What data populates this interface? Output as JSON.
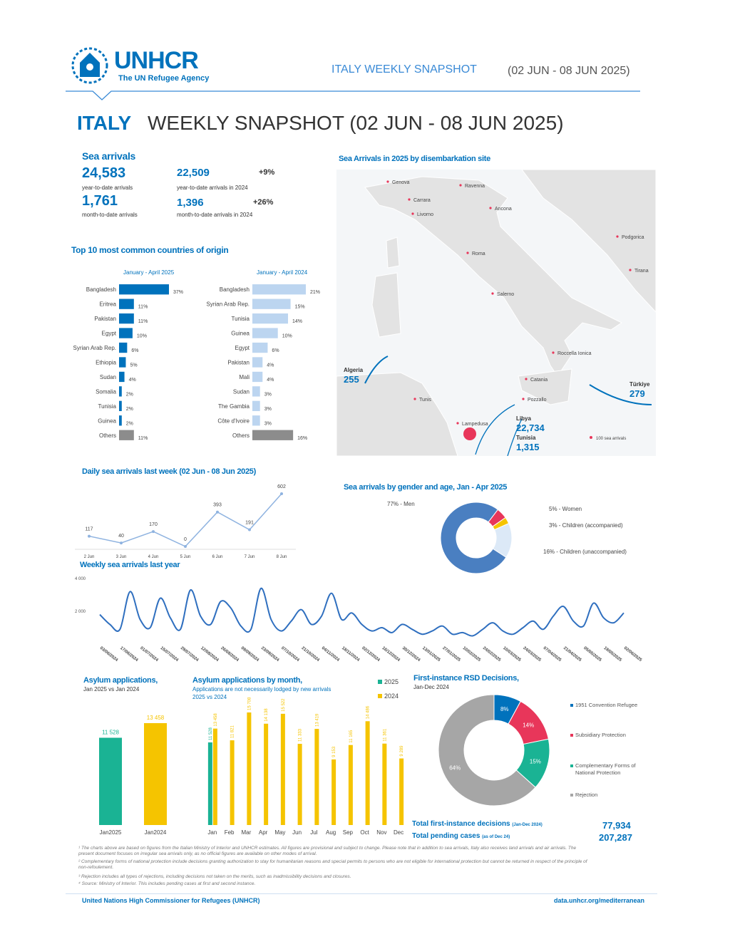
{
  "header": {
    "logo": "UNHCR",
    "tagline": "The UN Refugee Agency",
    "snapshot": "ITALY WEEKLY SNAPSHOT",
    "dates": "(02 JUN - 08 JUN 2025)"
  },
  "title": {
    "country": "ITALY",
    "rest": "WEEKLY SNAPSHOT (02 JUN - 08 JUN 2025)"
  },
  "sea_arrivals": {
    "heading": "Sea arrivals",
    "items": [
      {
        "value": "24,583",
        "label": "year-to-date arrivals"
      },
      {
        "value": "22,509",
        "label": "year-to-date arrivals in 2024",
        "change": "+9%"
      },
      {
        "value": "1,761",
        "label": "month-to-date arrivals"
      },
      {
        "value": "1,396",
        "label": "month-to-date arrivals in 2024",
        "change": "+26%"
      }
    ]
  },
  "origin_heading": "Top 10 most common countries of origin",
  "map": {
    "title": "Sea Arrivals in 2025 by disembarkation site",
    "sites": [
      "Genova",
      "Carrara",
      "Livorno",
      "Ravenna",
      "Ancona",
      "Roma",
      "Salerno",
      "Roccella Ionica",
      "Catania",
      "Pozzallo",
      "Lampedusa",
      "Tunis",
      "Podgorica",
      "Tirana"
    ],
    "flows": [
      {
        "origin": "Algeria",
        "value": "255"
      },
      {
        "origin": "Libya",
        "value": "22,734"
      },
      {
        "origin": "Tunisia",
        "value": "1,315"
      },
      {
        "origin": "Türkiye",
        "value": "279"
      }
    ],
    "legend": "100 sea arrivals"
  },
  "chart_data": [
    {
      "type": "hbar",
      "subtitle": "January - April 2025",
      "categories": [
        "Bangladesh",
        "Eritrea",
        "Pakistan",
        "Egypt",
        "Syrian Arab Rep.",
        "Ethiopia",
        "Sudan",
        "Somalia",
        "Tunisia",
        "Guinea",
        "Others"
      ],
      "values": [
        37,
        11,
        11,
        10,
        6,
        5,
        4,
        2,
        2,
        2,
        11
      ],
      "value_labels": [
        "37%",
        "11%",
        "11%",
        "10%",
        "6%",
        "5%",
        "4%",
        "2%",
        "2%",
        "2%",
        "11%"
      ],
      "colors": [
        "#0072bc",
        "#0072bc",
        "#0072bc",
        "#0072bc",
        "#0072bc",
        "#0072bc",
        "#0072bc",
        "#0072bc",
        "#0072bc",
        "#0072bc",
        "#8c8c8c"
      ]
    },
    {
      "type": "hbar",
      "subtitle": "January - April 2024",
      "categories": [
        "Bangladesh",
        "Syrian Arab Rep.",
        "Tunisia",
        "Guinea",
        "Egypt",
        "Pakistan",
        "Mali",
        "Sudan",
        "The Gambia",
        "Côte d'Ivoire",
        "Others"
      ],
      "values": [
        21,
        15,
        14,
        10,
        6,
        4,
        4,
        3,
        3,
        3,
        16
      ],
      "value_labels": [
        "21%",
        "15%",
        "14%",
        "10%",
        "6%",
        "4%",
        "4%",
        "3%",
        "3%",
        "3%",
        "16%"
      ],
      "colors": [
        "#bcd5f0",
        "#bcd5f0",
        "#bcd5f0",
        "#bcd5f0",
        "#bcd5f0",
        "#bcd5f0",
        "#bcd5f0",
        "#bcd5f0",
        "#bcd5f0",
        "#bcd5f0",
        "#8c8c8c"
      ]
    },
    {
      "type": "line",
      "title": "Daily sea arrivals last week (02 Jun - 08 Jun 2025)",
      "categories": [
        "2 Jun",
        "3 Jun",
        "4 Jun",
        "5 Jun",
        "6 Jun",
        "7 Jun",
        "8 Jun"
      ],
      "values": [
        117,
        40,
        170,
        0,
        393,
        191,
        602
      ],
      "color": "#8fb3e0"
    },
    {
      "type": "donut",
      "title": "Sea arrivals by gender and age, Jan - Apr 2025",
      "categories": [
        "77% - Men",
        "5% - Women",
        "3% - Children (accompanied)",
        "16% - Children (unaccompanied)"
      ],
      "values": [
        77,
        5,
        3,
        16
      ],
      "colors": [
        "#4a7fc1",
        "#e8365a",
        "#f5c400",
        "#dce9f7"
      ]
    },
    {
      "type": "line",
      "title": "Weekly sea arrivals last year",
      "categories": [
        "03/06/2024",
        null,
        "17/06/2024",
        null,
        "01/07/2024",
        null,
        "15/07/2024",
        null,
        "29/07/2024",
        null,
        "12/08/2024",
        null,
        "26/08/2024",
        null,
        "09/09/2024",
        null,
        "23/09/2024",
        null,
        "07/10/2024",
        null,
        "21/10/2024",
        null,
        "04/11/2024",
        null,
        "18/11/2024",
        null,
        "02/12/2024",
        null,
        "16/12/2024",
        null,
        "30/12/2024",
        null,
        "13/01/2025",
        null,
        "27/01/2025",
        null,
        "10/02/2025",
        null,
        "24/02/2025",
        null,
        "10/03/2025",
        null,
        "24/03/2025",
        null,
        "07/04/2025",
        null,
        "21/04/2025",
        null,
        "05/05/2025",
        null,
        "19/05/2025",
        null,
        "02/06/2025"
      ],
      "values": [
        1800,
        1200,
        900,
        3200,
        1500,
        1000,
        2800,
        1600,
        900,
        3300,
        1700,
        1200,
        2600,
        2200,
        1100,
        900,
        3400,
        1500,
        800,
        1400,
        2100,
        1200,
        1700,
        3100,
        1500,
        1900,
        1200,
        800,
        1000,
        700,
        1200,
        900,
        600,
        800,
        1100,
        600,
        700,
        500,
        900,
        1300,
        800,
        600,
        1000,
        1400,
        900,
        1700,
        2300,
        1400,
        1100,
        2500,
        1600,
        1300,
        1900
      ],
      "ylim": [
        0,
        4000
      ],
      "yticks": [
        {
          "value": 2000,
          "label": "2 000"
        },
        {
          "value": 4000,
          "label": "4 000"
        }
      ],
      "color": "#2f6fbf"
    },
    {
      "type": "bar",
      "title": "Asylum applications,",
      "subtitle": "Jan 2025 vs Jan 2024",
      "categories": [
        "Jan2025",
        "Jan2024"
      ],
      "values": [
        11528,
        13458
      ],
      "value_labels": [
        "11 528",
        "13 458"
      ],
      "colors": [
        "#1ab394",
        "#f5c400"
      ]
    },
    {
      "type": "grouped_bar",
      "title": "Asylum applications by month,",
      "subtitle": "Applications are not necessarily lodged by new arrivals",
      "note": "2025 vs 2024",
      "categories": [
        "Jan",
        "Feb",
        "Mar",
        "Apr",
        "May",
        "Jun",
        "Jul",
        "Aug",
        "Sep",
        "Oct",
        "Nov",
        "Dec"
      ],
      "series": [
        {
          "name": "2025",
          "color": "#1ab394",
          "values": [
            11528,
            null,
            null,
            null,
            null,
            null,
            null,
            null,
            null,
            null,
            null,
            null
          ],
          "value_labels": [
            "11 528",
            null,
            null,
            null,
            null,
            null,
            null,
            null,
            null,
            null,
            null,
            null
          ]
        },
        {
          "name": "2024",
          "color": "#f5c400",
          "values": [
            13458,
            11821,
            15708,
            14138,
            15522,
            11333,
            13419,
            9153,
            11165,
            14486,
            11361,
            9289
          ],
          "value_labels": [
            "13 458",
            "11 821",
            "15 708",
            "14 138",
            "15 522",
            "11 333",
            "13 419",
            "9 153",
            "11 165",
            "14 486",
            "11 361",
            "9 289"
          ]
        }
      ]
    },
    {
      "type": "donut",
      "title": "First-instance RSD Decisions,",
      "subtitle": "Jan-Dec 2024",
      "categories": [
        "1951 Convention Refugee",
        "Subsidiary Protection",
        "Complementary Forms of National Protection",
        "Rejection"
      ],
      "values": [
        8,
        14,
        15,
        64
      ],
      "value_labels": [
        "8%",
        "14%",
        "15%",
        "64%"
      ],
      "colors": [
        "#0072bc",
        "#e8365a",
        "#1ab394",
        "#a6a6a6"
      ]
    }
  ],
  "totals": [
    {
      "label": "Total first-instance decisions",
      "qualifier": "(Jan-Dec 2024)",
      "value": "77,934"
    },
    {
      "label": "Total pending cases",
      "qualifier": "(as of Dec 24)",
      "value": "207,287"
    }
  ],
  "footnotes": [
    "¹ The charts above are based on figures from the Italian Ministry of Interior and UNHCR estimates. All figures are provisional and subject to change. Please note that in addition to sea arrivals, Italy also receives land arrivals and air arrivals. The present document focuses on irregular sea arrivals only, as no official figures are available on other modes of arrival.",
    "² Complementary forms of national protection include decisions granting authorization to stay for humanitarian reasons and special permits to persons who are not eligible for international protection but cannot be returned in respect of the principle of non-refoulement.",
    "³ Rejection includes all types of rejections, including decisions not taken on the merits, such as inadmissibility decisions and closures.",
    "⁴ Source: Ministry of Interior. This includes pending cases at first and second instance."
  ],
  "footer": {
    "left": "United Nations High Commissioner for Refugees (UNHCR)",
    "right": "data.unhcr.org/mediterranean"
  }
}
